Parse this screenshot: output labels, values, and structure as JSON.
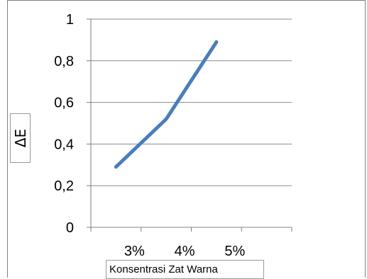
{
  "chart_data": {
    "type": "line",
    "categories": [
      "3%",
      "4%",
      "5%"
    ],
    "series": [
      {
        "values": [
          0.29,
          0.52,
          0.89
        ]
      }
    ],
    "ylim": [
      0,
      1
    ],
    "yticks": [
      0,
      0.2,
      0.4,
      0.6,
      0.8,
      1
    ],
    "ytick_labels": [
      "0",
      "0,2",
      "0,4",
      "0,6",
      "0,8",
      "1"
    ],
    "xlabel": "Konsentrasi Zat Warna",
    "ylabel": "ΔE",
    "grid": true,
    "legend": "none",
    "colors": {
      "line": "#4a7ebb",
      "grid": "#8c8c8c",
      "axis": "#808080"
    }
  }
}
